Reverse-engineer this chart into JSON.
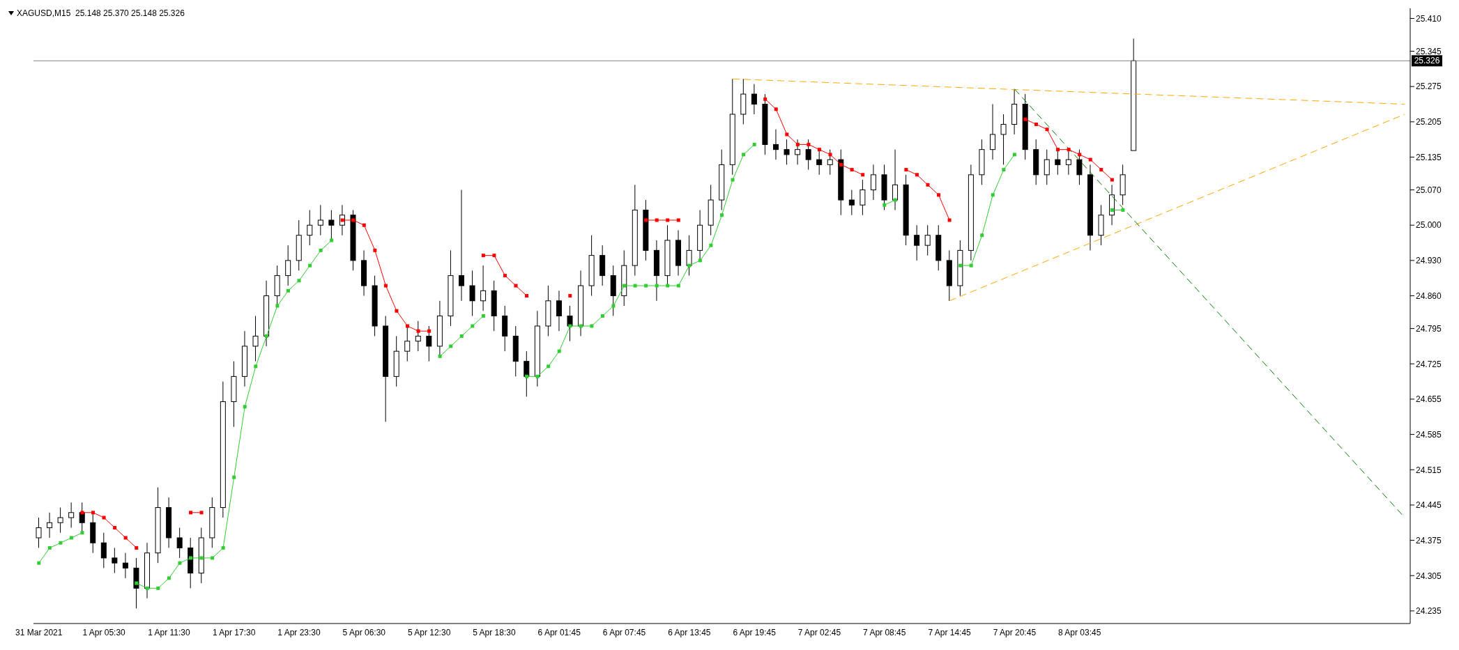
{
  "chart_data": {
    "type": "candlestick",
    "title": "XAGUSD,M15  25.148 25.370 25.148 25.326",
    "color": "#000000",
    "categories": [
      "31 Mar 2021",
      null,
      null,
      null,
      null,
      null,
      "1 Apr 05:30",
      null,
      null,
      null,
      null,
      null,
      "1 Apr 11:30",
      null,
      null,
      null,
      null,
      null,
      "1 Apr 17:30",
      null,
      null,
      null,
      null,
      null,
      "1 Apr 23:30",
      null,
      null,
      null,
      null,
      null,
      "5 Apr 06:30",
      null,
      null,
      null,
      null,
      null,
      "5 Apr 12:30",
      null,
      null,
      null,
      null,
      null,
      "5 Apr 18:30",
      null,
      null,
      null,
      null,
      null,
      "6 Apr 01:45",
      null,
      null,
      null,
      null,
      null,
      "6 Apr 07:45",
      null,
      null,
      null,
      null,
      null,
      "6 Apr 13:45",
      null,
      null,
      null,
      null,
      null,
      "6 Apr 19:45",
      null,
      null,
      null,
      null,
      null,
      "7 Apr 02:45",
      null,
      null,
      null,
      null,
      null,
      "7 Apr 08:45",
      null,
      null,
      null,
      null,
      null,
      "7 Apr 14:45",
      null,
      null,
      null,
      null,
      null,
      "7 Apr 20:45",
      null,
      null,
      null,
      null,
      null,
      "8 Apr 03:45",
      null,
      null,
      null,
      null,
      null,
      null,
      null,
      null,
      null,
      null,
      null,
      null,
      null,
      null,
      null,
      null,
      null,
      null,
      null,
      null,
      null,
      null,
      null,
      null,
      null,
      null,
      null,
      null,
      null,
      null
    ],
    "ohlc": [
      [
        24.38,
        24.42,
        24.36,
        24.4
      ],
      [
        24.4,
        24.43,
        24.38,
        24.41
      ],
      [
        24.41,
        24.44,
        24.39,
        24.42
      ],
      [
        24.42,
        24.45,
        24.4,
        24.43
      ],
      [
        24.43,
        24.45,
        24.39,
        24.41
      ],
      [
        24.41,
        24.43,
        24.35,
        24.37
      ],
      [
        24.37,
        24.39,
        24.32,
        24.34
      ],
      [
        24.34,
        24.36,
        24.31,
        24.33
      ],
      [
        24.33,
        24.35,
        24.3,
        24.32
      ],
      [
        24.32,
        24.34,
        24.24,
        24.28
      ],
      [
        24.28,
        24.37,
        24.26,
        24.35
      ],
      [
        24.35,
        24.48,
        24.33,
        24.44
      ],
      [
        24.44,
        24.46,
        24.36,
        24.38
      ],
      [
        24.38,
        24.4,
        24.34,
        24.36
      ],
      [
        24.36,
        24.38,
        24.28,
        24.31
      ],
      [
        24.31,
        24.4,
        24.29,
        24.38
      ],
      [
        24.38,
        24.46,
        24.36,
        24.44
      ],
      [
        24.44,
        24.69,
        24.42,
        24.65
      ],
      [
        24.65,
        24.73,
        24.6,
        24.7
      ],
      [
        24.7,
        24.79,
        24.68,
        24.76
      ],
      [
        24.76,
        24.82,
        24.73,
        24.78
      ],
      [
        24.78,
        24.89,
        24.76,
        24.86
      ],
      [
        24.86,
        24.92,
        24.84,
        24.9
      ],
      [
        24.9,
        24.96,
        24.88,
        24.93
      ],
      [
        24.93,
        25.01,
        24.91,
        24.98
      ],
      [
        24.98,
        25.03,
        24.96,
        25.0
      ],
      [
        25.0,
        25.04,
        24.98,
        25.01
      ],
      [
        25.01,
        25.03,
        24.97,
        25.0
      ],
      [
        25.0,
        25.04,
        24.98,
        25.02
      ],
      [
        25.02,
        25.03,
        24.91,
        24.93
      ],
      [
        24.93,
        24.95,
        24.86,
        24.88
      ],
      [
        24.88,
        24.9,
        24.78,
        24.8
      ],
      [
        24.8,
        24.82,
        24.61,
        24.7
      ],
      [
        24.7,
        24.78,
        24.68,
        24.75
      ],
      [
        24.75,
        24.8,
        24.73,
        24.77
      ],
      [
        24.77,
        24.81,
        24.75,
        24.78
      ],
      [
        24.78,
        24.8,
        24.73,
        24.76
      ],
      [
        24.76,
        24.85,
        24.74,
        24.82
      ],
      [
        24.82,
        24.95,
        24.8,
        24.9
      ],
      [
        24.9,
        25.07,
        24.85,
        24.88
      ],
      [
        24.88,
        24.91,
        24.82,
        24.85
      ],
      [
        24.85,
        24.92,
        24.83,
        24.87
      ],
      [
        24.87,
        24.89,
        24.79,
        24.82
      ],
      [
        24.82,
        24.84,
        24.75,
        24.78
      ],
      [
        24.78,
        24.8,
        24.7,
        24.73
      ],
      [
        24.73,
        24.75,
        24.66,
        24.7
      ],
      [
        24.7,
        24.83,
        24.68,
        24.8
      ],
      [
        24.8,
        24.88,
        24.78,
        24.85
      ],
      [
        24.85,
        24.87,
        24.79,
        24.82
      ],
      [
        24.82,
        24.84,
        24.77,
        24.8
      ],
      [
        24.8,
        24.91,
        24.78,
        24.88
      ],
      [
        24.88,
        24.98,
        24.86,
        24.94
      ],
      [
        24.94,
        24.96,
        24.88,
        24.9
      ],
      [
        24.9,
        24.92,
        24.82,
        24.86
      ],
      [
        24.86,
        24.95,
        24.84,
        24.92
      ],
      [
        24.92,
        25.08,
        24.9,
        25.03
      ],
      [
        25.03,
        25.05,
        24.93,
        24.95
      ],
      [
        24.95,
        24.97,
        24.85,
        24.9
      ],
      [
        24.9,
        25.0,
        24.88,
        24.97
      ],
      [
        24.97,
        24.99,
        24.9,
        24.92
      ],
      [
        24.92,
        24.98,
        24.9,
        24.95
      ],
      [
        24.95,
        25.03,
        24.93,
        25.0
      ],
      [
        25.0,
        25.08,
        24.98,
        25.05
      ],
      [
        25.05,
        25.15,
        25.03,
        25.12
      ],
      [
        25.12,
        25.29,
        25.1,
        25.22
      ],
      [
        25.22,
        25.29,
        25.2,
        25.26
      ],
      [
        25.26,
        25.28,
        25.22,
        25.24
      ],
      [
        25.24,
        25.26,
        25.14,
        25.16
      ],
      [
        25.16,
        25.19,
        25.13,
        25.15
      ],
      [
        25.15,
        25.17,
        25.12,
        25.14
      ],
      [
        25.14,
        25.17,
        25.12,
        25.15
      ],
      [
        25.15,
        25.17,
        25.11,
        25.13
      ],
      [
        25.13,
        25.15,
        25.1,
        25.12
      ],
      [
        25.12,
        25.15,
        25.1,
        25.13
      ],
      [
        25.13,
        25.15,
        25.02,
        25.05
      ],
      [
        25.05,
        25.07,
        25.02,
        25.04
      ],
      [
        25.04,
        25.09,
        25.02,
        25.07
      ],
      [
        25.07,
        25.12,
        25.05,
        25.1
      ],
      [
        25.1,
        25.12,
        25.03,
        25.05
      ],
      [
        25.05,
        25.15,
        25.03,
        25.08
      ],
      [
        25.08,
        25.1,
        24.96,
        24.98
      ],
      [
        24.98,
        25.0,
        24.93,
        24.96
      ],
      [
        24.96,
        25.0,
        24.94,
        24.98
      ],
      [
        24.98,
        25.0,
        24.91,
        24.93
      ],
      [
        24.93,
        24.95,
        24.85,
        24.88
      ],
      [
        24.88,
        24.97,
        24.86,
        24.95
      ],
      [
        24.95,
        25.12,
        24.93,
        25.1
      ],
      [
        25.1,
        25.17,
        25.08,
        25.15
      ],
      [
        25.15,
        25.24,
        25.13,
        25.18
      ],
      [
        25.18,
        25.22,
        25.12,
        25.2
      ],
      [
        25.2,
        25.27,
        25.18,
        25.24
      ],
      [
        25.24,
        25.26,
        25.13,
        25.15
      ],
      [
        25.15,
        25.17,
        25.08,
        25.1
      ],
      [
        25.1,
        25.15,
        25.08,
        25.13
      ],
      [
        25.13,
        25.15,
        25.1,
        25.12
      ],
      [
        25.12,
        25.15,
        25.1,
        25.13
      ],
      [
        25.13,
        25.15,
        25.08,
        25.1
      ],
      [
        25.1,
        25.12,
        24.95,
        24.98
      ],
      [
        24.98,
        25.04,
        24.96,
        25.02
      ],
      [
        25.02,
        25.08,
        25.0,
        25.06
      ],
      [
        25.06,
        25.12,
        25.04,
        25.1
      ],
      [
        25.148,
        25.37,
        25.148,
        25.326
      ],
      null,
      null,
      null,
      null,
      null,
      null,
      null,
      null,
      null,
      null,
      null,
      null,
      null,
      null,
      null,
      null,
      null,
      null,
      null,
      null,
      null,
      null,
      null,
      null,
      null
    ],
    "series": [
      {
        "type": "line",
        "marker": "square",
        "color": "#32cd32",
        "values": [
          24.33,
          24.36,
          24.37,
          24.38,
          24.39,
          null,
          null,
          null,
          null,
          24.29,
          24.28,
          24.28,
          24.3,
          24.33,
          24.34,
          24.34,
          24.34,
          24.36,
          24.5,
          24.64,
          24.72,
          24.78,
          24.84,
          24.87,
          24.89,
          24.92,
          24.95,
          24.97,
          null,
          null,
          null,
          null,
          null,
          null,
          null,
          null,
          null,
          24.74,
          24.76,
          24.78,
          24.8,
          24.82,
          null,
          null,
          null,
          24.7,
          24.7,
          24.72,
          24.75,
          24.8,
          24.8,
          24.8,
          24.82,
          24.84,
          24.88,
          24.88,
          24.88,
          24.88,
          24.88,
          24.88,
          24.92,
          24.93,
          24.96,
          25.02,
          25.09,
          25.14,
          25.16,
          null,
          null,
          null,
          null,
          null,
          null,
          null,
          null,
          null,
          null,
          null,
          25.04,
          25.05,
          null,
          null,
          null,
          null,
          null,
          24.92,
          24.92,
          24.98,
          25.06,
          25.11,
          25.14,
          null,
          null,
          null,
          null,
          null,
          null,
          null,
          null,
          25.03,
          25.03,
          null,
          null,
          null,
          null,
          null,
          null,
          null,
          null,
          null,
          null,
          null,
          null,
          null,
          null,
          null,
          null,
          null,
          null,
          null,
          null,
          null,
          null,
          null,
          null,
          null,
          null
        ]
      },
      {
        "type": "line",
        "marker": "square",
        "color": "#ff0000",
        "values": [
          null,
          null,
          null,
          null,
          24.43,
          24.43,
          24.42,
          24.4,
          24.38,
          24.36,
          null,
          null,
          null,
          null,
          24.43,
          24.43,
          null,
          null,
          null,
          null,
          null,
          null,
          null,
          null,
          null,
          null,
          null,
          null,
          25.01,
          25.01,
          25.0,
          24.95,
          24.88,
          24.83,
          24.8,
          24.79,
          24.79,
          null,
          null,
          null,
          null,
          24.94,
          24.94,
          24.9,
          24.88,
          24.86,
          null,
          null,
          null,
          24.86,
          null,
          null,
          null,
          null,
          null,
          null,
          25.01,
          25.01,
          25.01,
          25.01,
          null,
          null,
          null,
          null,
          null,
          null,
          null,
          25.25,
          25.23,
          25.18,
          25.16,
          25.16,
          25.15,
          25.14,
          25.12,
          25.11,
          25.1,
          null,
          null,
          null,
          25.11,
          25.1,
          25.08,
          25.06,
          25.01,
          null,
          null,
          null,
          null,
          null,
          null,
          25.21,
          25.2,
          25.19,
          25.15,
          25.15,
          25.14,
          25.13,
          25.11,
          25.09,
          null,
          null,
          null,
          null,
          null,
          null,
          null,
          null,
          null,
          null,
          null,
          null,
          null,
          null,
          null,
          null,
          null,
          null,
          null,
          null,
          null,
          null,
          null,
          null,
          null,
          null,
          null
        ]
      },
      {
        "type": "line",
        "line_style": "dashed",
        "color": "#ffa500",
        "values": [
          null,
          null,
          null,
          null,
          null,
          null,
          null,
          null,
          null,
          null,
          null,
          null,
          null,
          null,
          null,
          null,
          null,
          null,
          null,
          null,
          null,
          null,
          null,
          null,
          null,
          null,
          null,
          null,
          null,
          null,
          null,
          null,
          null,
          null,
          null,
          null,
          null,
          null,
          null,
          null,
          null,
          null,
          null,
          null,
          null,
          null,
          null,
          null,
          null,
          null,
          null,
          null,
          null,
          null,
          null,
          null,
          null,
          null,
          null,
          null,
          null,
          null,
          null,
          null,
          25.29,
          null,
          null,
          null,
          null,
          null,
          null,
          null,
          null,
          null,
          null,
          null,
          null,
          null,
          null,
          null,
          null,
          null,
          null,
          null,
          null,
          null,
          null,
          null,
          null,
          null,
          null,
          null,
          null,
          null,
          null,
          null,
          null,
          null,
          null,
          null,
          null,
          null,
          null,
          null,
          null,
          null,
          null,
          null,
          null,
          null,
          null,
          null,
          null,
          null,
          null,
          null,
          null,
          null,
          null,
          null,
          null,
          null,
          null,
          null,
          null,
          null,
          25.24
        ]
      },
      {
        "type": "line",
        "line_style": "dashed",
        "color": "#ffa500",
        "values": [
          null,
          null,
          null,
          null,
          null,
          null,
          null,
          null,
          null,
          null,
          null,
          null,
          null,
          null,
          null,
          null,
          null,
          null,
          null,
          null,
          null,
          null,
          null,
          null,
          null,
          null,
          null,
          null,
          null,
          null,
          null,
          null,
          null,
          null,
          null,
          null,
          null,
          null,
          null,
          null,
          null,
          null,
          null,
          null,
          null,
          null,
          null,
          null,
          null,
          null,
          null,
          null,
          null,
          null,
          null,
          null,
          null,
          null,
          null,
          null,
          null,
          null,
          null,
          null,
          null,
          null,
          null,
          null,
          null,
          null,
          null,
          null,
          null,
          null,
          null,
          null,
          null,
          null,
          null,
          null,
          null,
          null,
          null,
          null,
          24.85,
          null,
          null,
          null,
          null,
          null,
          null,
          null,
          null,
          null,
          null,
          null,
          null,
          null,
          null,
          null,
          null,
          null,
          null,
          null,
          null,
          null,
          null,
          null,
          null,
          null,
          null,
          null,
          null,
          null,
          null,
          null,
          null,
          null,
          null,
          null,
          null,
          null,
          null,
          null,
          null,
          null,
          25.22
        ]
      },
      {
        "type": "line",
        "line_style": "dashed",
        "color": "#008000",
        "values": [
          null,
          null,
          null,
          null,
          null,
          null,
          null,
          null,
          null,
          null,
          null,
          null,
          null,
          null,
          null,
          null,
          null,
          null,
          null,
          null,
          null,
          null,
          null,
          null,
          null,
          null,
          null,
          null,
          null,
          null,
          null,
          null,
          null,
          null,
          null,
          null,
          null,
          null,
          null,
          null,
          null,
          null,
          null,
          null,
          null,
          null,
          null,
          null,
          null,
          null,
          null,
          null,
          null,
          null,
          null,
          null,
          null,
          null,
          null,
          null,
          null,
          null,
          null,
          null,
          null,
          null,
          null,
          null,
          null,
          null,
          null,
          null,
          null,
          null,
          null,
          null,
          null,
          null,
          null,
          null,
          null,
          null,
          null,
          null,
          null,
          null,
          null,
          null,
          null,
          null,
          25.27,
          null,
          null,
          null,
          null,
          null,
          null,
          null,
          null,
          null,
          null,
          null,
          null,
          null,
          null,
          null,
          null,
          null,
          null,
          null,
          null,
          null,
          null,
          null,
          null,
          null,
          null,
          null,
          null,
          null,
          null,
          null,
          null,
          null,
          null,
          null,
          24.42
        ]
      }
    ],
    "ylim": [
      24.21,
      25.43
    ],
    "yticks": [
      24.235,
      24.305,
      24.375,
      24.445,
      24.515,
      24.585,
      24.655,
      24.725,
      24.795,
      {
        "value": 24.86,
        "label": "24.860"
      },
      {
        "value": 24.93,
        "label": "24.930"
      },
      {
        "value": 25,
        "label": "25.000"
      },
      {
        "value": 25.07,
        "label": "25.070"
      },
      25.135,
      25.205,
      25.275,
      25.345,
      {
        "value": 25.41,
        "label": "25.410"
      }
    ],
    "ref_lines": [
      {
        "axis": "y",
        "value": 25.326,
        "label": "25.326",
        "color": "#808080"
      }
    ]
  }
}
